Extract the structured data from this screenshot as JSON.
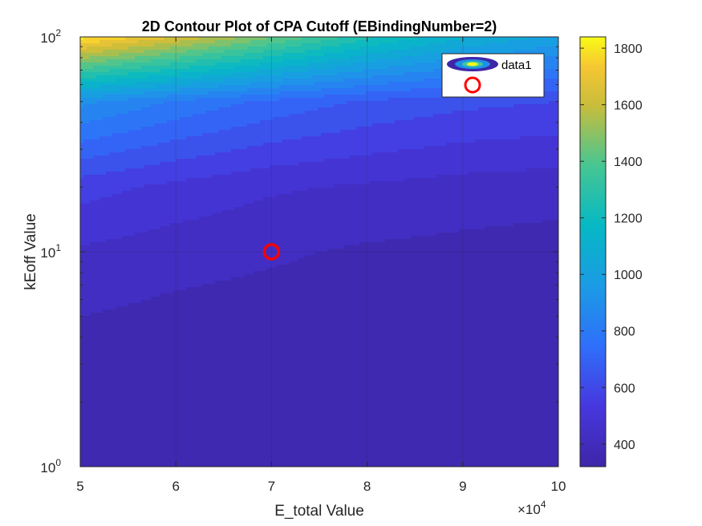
{
  "chart_data": {
    "type": "contour",
    "title": "2D Contour Plot of CPA Cutoff (EBindingNumber=2)",
    "xlabel": "E_total Value",
    "ylabel": "kEoff Value",
    "x_exponent": {
      "base": "×10",
      "power": "4"
    },
    "xlim": [
      5,
      10
    ],
    "ylim": [
      1,
      100
    ],
    "y_scale": "log",
    "x_ticks": [
      "5",
      "6",
      "7",
      "8",
      "9",
      "10"
    ],
    "x_tick_values": [
      5,
      6,
      7,
      8,
      9,
      10
    ],
    "y_ticks": [
      {
        "base": "10",
        "power": "0",
        "value": 1
      },
      {
        "base": "10",
        "power": "1",
        "value": 10
      },
      {
        "base": "10",
        "power": "2",
        "value": 100
      }
    ],
    "grid": true,
    "colorbar": {
      "ticks": [
        "400",
        "600",
        "800",
        "1000",
        "1200",
        "1400",
        "1600",
        "1800"
      ],
      "tick_values": [
        400,
        600,
        800,
        1000,
        1200,
        1400,
        1600,
        1800
      ],
      "range": [
        320,
        1840
      ],
      "colormap": "parula"
    },
    "contour_levels": [
      320,
      390,
      460,
      530,
      600,
      670,
      740,
      810,
      880,
      950,
      1020,
      1090,
      1160,
      1230,
      1300,
      1370,
      1440,
      1510,
      1580,
      1650,
      1720,
      1790
    ],
    "field_samples": {
      "x": [
        5,
        6,
        7,
        8,
        9,
        10
      ],
      "y": [
        1,
        5,
        10,
        20,
        50,
        100
      ],
      "z": [
        [
          340,
          340,
          340,
          340,
          340,
          340
        ],
        [
          390,
          370,
          360,
          350,
          345,
          340
        ],
        [
          450,
          420,
          400,
          380,
          370,
          360
        ],
        [
          560,
          510,
          470,
          450,
          430,
          420
        ],
        [
          900,
          800,
          720,
          660,
          620,
          600
        ],
        [
          1820,
          1650,
          1450,
          1250,
          1100,
          1000
        ]
      ]
    },
    "series": [
      {
        "name": "data1",
        "type": "contour"
      },
      {
        "name": "",
        "type": "marker",
        "marker": "circle",
        "color": "#ff0000",
        "x": 7,
        "y": 10
      }
    ],
    "legend": {
      "placement": "top-right",
      "entries": [
        "data1",
        ""
      ]
    }
  }
}
